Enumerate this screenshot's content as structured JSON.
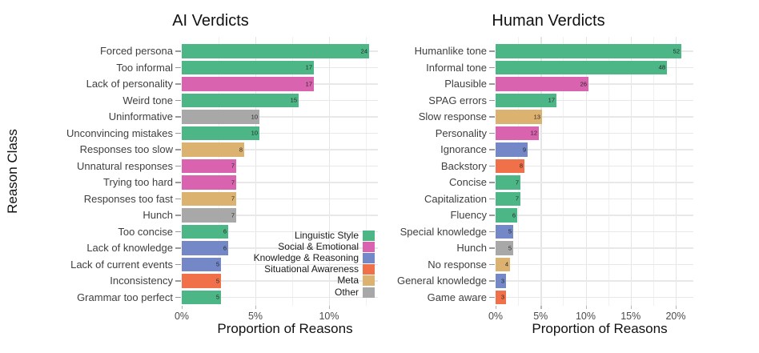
{
  "page": {
    "background": "#ffffff"
  },
  "legend": {
    "position": "inside left panel, lower right",
    "entries": [
      {
        "key": "linguistic",
        "label": "Linguistic Style",
        "color": "#4DB687"
      },
      {
        "key": "social",
        "label": "Social & Emotional",
        "color": "#D963AE"
      },
      {
        "key": "knowledge",
        "label": "Knowledge & Reasoning",
        "color": "#7487C6"
      },
      {
        "key": "situational",
        "label": "Situational Awareness",
        "color": "#F0704A"
      },
      {
        "key": "meta",
        "label": "Meta",
        "color": "#DCB271"
      },
      {
        "key": "other",
        "label": "Other",
        "color": "#A8A8A8"
      }
    ]
  },
  "chart_data": [
    {
      "type": "bar",
      "orientation": "horizontal",
      "title": "AI Verdicts",
      "xlabel": "Proportion of Reasons",
      "ylabel": "Reason Class",
      "x_tick_labels": [
        "0%",
        "5%",
        "10%"
      ],
      "x_tick_values": [
        0,
        5,
        10
      ],
      "xlim_pct": [
        0,
        13.3
      ],
      "grid": {
        "major_step_pct": 5,
        "minor_step_pct": 2.5
      },
      "bars": [
        {
          "category": "Forced persona",
          "count": 24,
          "pct": 12.7,
          "class": "linguistic"
        },
        {
          "category": "Too informal",
          "count": 17,
          "pct": 8.99,
          "class": "linguistic"
        },
        {
          "category": "Lack of personality",
          "count": 17,
          "pct": 8.99,
          "class": "social"
        },
        {
          "category": "Weird tone",
          "count": 15,
          "pct": 7.94,
          "class": "linguistic"
        },
        {
          "category": "Uninformative",
          "count": 10,
          "pct": 5.29,
          "class": "other"
        },
        {
          "category": "Unconvincing mistakes",
          "count": 10,
          "pct": 5.29,
          "class": "linguistic"
        },
        {
          "category": "Responses too slow",
          "count": 8,
          "pct": 4.23,
          "class": "meta"
        },
        {
          "category": "Unnatural responses",
          "count": 7,
          "pct": 3.7,
          "class": "social"
        },
        {
          "category": "Trying too hard",
          "count": 7,
          "pct": 3.7,
          "class": "social"
        },
        {
          "category": "Responses too fast",
          "count": 7,
          "pct": 3.7,
          "class": "meta"
        },
        {
          "category": "Hunch",
          "count": 7,
          "pct": 3.7,
          "class": "other"
        },
        {
          "category": "Too concise",
          "count": 6,
          "pct": 3.17,
          "class": "linguistic"
        },
        {
          "category": "Lack of knowledge",
          "count": 6,
          "pct": 3.17,
          "class": "knowledge"
        },
        {
          "category": "Lack of current events",
          "count": 5,
          "pct": 2.65,
          "class": "knowledge"
        },
        {
          "category": "Inconsistency",
          "count": 5,
          "pct": 2.65,
          "class": "situational"
        },
        {
          "category": "Grammar too perfect",
          "count": 5,
          "pct": 2.65,
          "class": "linguistic"
        }
      ]
    },
    {
      "type": "bar",
      "orientation": "horizontal",
      "title": "Human Verdicts",
      "xlabel": "Proportion of Reasons",
      "ylabel": "",
      "x_tick_labels": [
        "0%",
        "5%",
        "10%",
        "15%",
        "20%"
      ],
      "x_tick_values": [
        0,
        5,
        10,
        15,
        20
      ],
      "xlim_pct": [
        0,
        21.9
      ],
      "grid": {
        "major_step_pct": 5,
        "minor_step_pct": 2.5
      },
      "bars": [
        {
          "category": "Humanlike tone",
          "count": 52,
          "pct": 20.63,
          "class": "linguistic"
        },
        {
          "category": "Informal tone",
          "count": 48,
          "pct": 19.05,
          "class": "linguistic"
        },
        {
          "category": "Plausible",
          "count": 26,
          "pct": 10.32,
          "class": "social"
        },
        {
          "category": "SPAG errors",
          "count": 17,
          "pct": 6.75,
          "class": "linguistic"
        },
        {
          "category": "Slow response",
          "count": 13,
          "pct": 5.16,
          "class": "meta"
        },
        {
          "category": "Personality",
          "count": 12,
          "pct": 4.76,
          "class": "social"
        },
        {
          "category": "Ignorance",
          "count": 9,
          "pct": 3.57,
          "class": "knowledge"
        },
        {
          "category": "Backstory",
          "count": 8,
          "pct": 3.17,
          "class": "situational"
        },
        {
          "category": "Concise",
          "count": 7,
          "pct": 2.78,
          "class": "linguistic"
        },
        {
          "category": "Capitalization",
          "count": 7,
          "pct": 2.78,
          "class": "linguistic"
        },
        {
          "category": "Fluency",
          "count": 6,
          "pct": 2.38,
          "class": "linguistic"
        },
        {
          "category": "Special knowledge",
          "count": 5,
          "pct": 1.98,
          "class": "knowledge"
        },
        {
          "category": "Hunch",
          "count": 5,
          "pct": 1.98,
          "class": "other"
        },
        {
          "category": "No response",
          "count": 4,
          "pct": 1.59,
          "class": "meta"
        },
        {
          "category": "General knowledge",
          "count": 3,
          "pct": 1.19,
          "class": "knowledge"
        },
        {
          "category": "Game aware",
          "count": 3,
          "pct": 1.19,
          "class": "situational"
        }
      ]
    }
  ]
}
